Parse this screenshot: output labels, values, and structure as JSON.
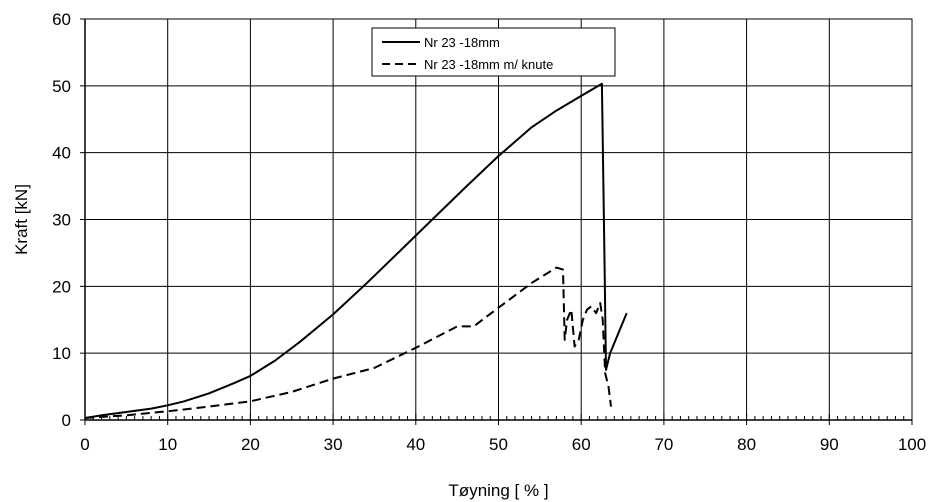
{
  "chart_data": {
    "type": "line",
    "title": "",
    "xlabel": "Tøyning [ % ]",
    "ylabel": "Kraft [kN]",
    "xlim": [
      0,
      100
    ],
    "ylim": [
      0,
      60
    ],
    "xticks": [
      0,
      10,
      20,
      30,
      40,
      50,
      60,
      70,
      80,
      90,
      100
    ],
    "yticks": [
      0,
      10,
      20,
      30,
      40,
      50,
      60
    ],
    "grid": true,
    "legend_position": "top-center",
    "series": [
      {
        "name": "Nr 23 -18mm",
        "style": "solid",
        "color": "#000000",
        "x": [
          0,
          2,
          5,
          8,
          10,
          12,
          15,
          18,
          20,
          23,
          26,
          30,
          34,
          38,
          42,
          46,
          50,
          54,
          57,
          60,
          62.5,
          62.8,
          63.0,
          63.5,
          64.5,
          65.5
        ],
        "y": [
          0.3,
          0.7,
          1.2,
          1.7,
          2.2,
          2.8,
          4.0,
          5.5,
          6.6,
          8.9,
          11.7,
          15.8,
          20.4,
          25.2,
          30.0,
          34.8,
          39.5,
          43.8,
          46.3,
          48.5,
          50.3,
          25,
          7.5,
          10,
          13,
          16
        ]
      },
      {
        "name": "Nr 23 -18mm m/ knute",
        "style": "dashed",
        "color": "#000000",
        "x": [
          0,
          5,
          10,
          15,
          20,
          25,
          30,
          35,
          40,
          45,
          47,
          50,
          54,
          57,
          57.8,
          58,
          58.3,
          58.8,
          59.2,
          59.7,
          60.2,
          60.7,
          61.2,
          61.8,
          62.3,
          62.6,
          62.9,
          63.3,
          63.6
        ],
        "y": [
          0.3,
          0.7,
          1.3,
          2.0,
          2.8,
          4.2,
          6.2,
          7.8,
          10.8,
          14.0,
          14.0,
          16.8,
          20.5,
          22.8,
          22.5,
          12.0,
          15.0,
          16.5,
          11.0,
          12.0,
          15.0,
          16.5,
          17.0,
          16.0,
          17.5,
          15.0,
          7.0,
          5.0,
          2.0
        ]
      }
    ]
  }
}
